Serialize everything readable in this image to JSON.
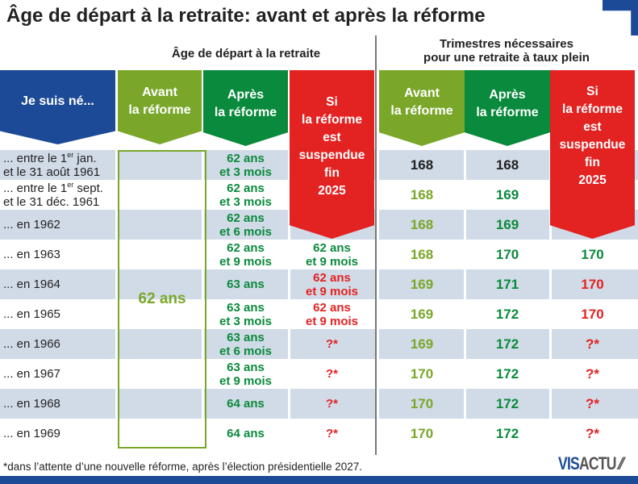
{
  "title": "Âge de départ à la retraite: avant et après la réforme",
  "group_age": "Âge de départ à la retraite",
  "group_trimestres": [
    "Trimestres nécessaires",
    "pour une retraite à taux plein"
  ],
  "headers": {
    "born": "Je suis né...",
    "avant": [
      "Avant",
      "la réforme"
    ],
    "apres": [
      "Après",
      "la réforme"
    ],
    "suspendue": [
      "Si",
      "la réforme",
      "est",
      "suspendue",
      "fin",
      "2025"
    ]
  },
  "colors": {
    "blue": "#1d4a96",
    "light_green": "#7aa72a",
    "dark_green": "#0a8a3c",
    "red": "#e32222",
    "row_shade": "#d1dbe7"
  },
  "avant_age_all": "62 ans",
  "chart_data": {
    "type": "table",
    "columns": [
      "Je suis né...",
      "Âge avant la réforme",
      "Âge après la réforme",
      "Âge si la réforme est suspendue fin 2025",
      "Trimestres avant la réforme",
      "Trimestres après la réforme",
      "Trimestres si la réforme est suspendue fin 2025"
    ],
    "rows": [
      {
        "born": [
          "... entre le 1",
          "er",
          " jan.",
          "et le 31 août 1961"
        ],
        "apres": [
          "62 ans",
          "et 3 mois"
        ],
        "susp": [
          "",
          ""
        ],
        "t_avant": "168",
        "t_apres": "168",
        "t_susp": ""
      },
      {
        "born": [
          "... entre le 1",
          "er",
          " sept.",
          "et le 31 déc. 1961"
        ],
        "apres": [
          "62 ans",
          "et 3 mois"
        ],
        "susp": [
          "",
          ""
        ],
        "t_avant": "168",
        "t_apres": "169",
        "t_susp": ""
      },
      {
        "born": [
          "... en 1962",
          "",
          "",
          ""
        ],
        "apres": [
          "62 ans",
          "et 6 mois"
        ],
        "susp": [
          "",
          ""
        ],
        "t_avant": "168",
        "t_apres": "169",
        "t_susp": ""
      },
      {
        "born": [
          "... en 1963",
          "",
          "",
          ""
        ],
        "apres": [
          "62 ans",
          "et 9 mois"
        ],
        "susp": [
          "62 ans",
          "et 9 mois"
        ],
        "t_avant": "168",
        "t_apres": "170",
        "t_susp": "170"
      },
      {
        "born": [
          "... en 1964",
          "",
          "",
          ""
        ],
        "apres": [
          "63 ans",
          ""
        ],
        "susp": [
          "62 ans",
          "et 9 mois"
        ],
        "t_avant": "169",
        "t_apres": "171",
        "t_susp": "170"
      },
      {
        "born": [
          "... en 1965",
          "",
          "",
          ""
        ],
        "apres": [
          "63 ans",
          "et 3 mois"
        ],
        "susp": [
          "62 ans",
          "et 9 mois"
        ],
        "t_avant": "169",
        "t_apres": "172",
        "t_susp": "170"
      },
      {
        "born": [
          "... en 1966",
          "",
          "",
          ""
        ],
        "apres": [
          "63 ans",
          "et 6 mois"
        ],
        "susp": [
          "?*",
          ""
        ],
        "t_avant": "169",
        "t_apres": "172",
        "t_susp": "?*"
      },
      {
        "born": [
          "... en 1967",
          "",
          "",
          ""
        ],
        "apres": [
          "63 ans",
          "et 9 mois"
        ],
        "susp": [
          "?*",
          ""
        ],
        "t_avant": "170",
        "t_apres": "172",
        "t_susp": "?*"
      },
      {
        "born": [
          "... en 1968",
          "",
          "",
          ""
        ],
        "apres": [
          "64 ans",
          ""
        ],
        "susp": [
          "?*",
          ""
        ],
        "t_avant": "170",
        "t_apres": "172",
        "t_susp": "?*"
      },
      {
        "born": [
          "... en 1969",
          "",
          "",
          ""
        ],
        "apres": [
          "64 ans",
          ""
        ],
        "susp": [
          "?*",
          ""
        ],
        "t_avant": "170",
        "t_apres": "172",
        "t_susp": "?*"
      }
    ]
  },
  "footnote": "*dans l’attente d’une nouvelle réforme, après l’élection présidentielle 2027.",
  "logo": {
    "part1": "VIS",
    "part2": "ACTU"
  }
}
